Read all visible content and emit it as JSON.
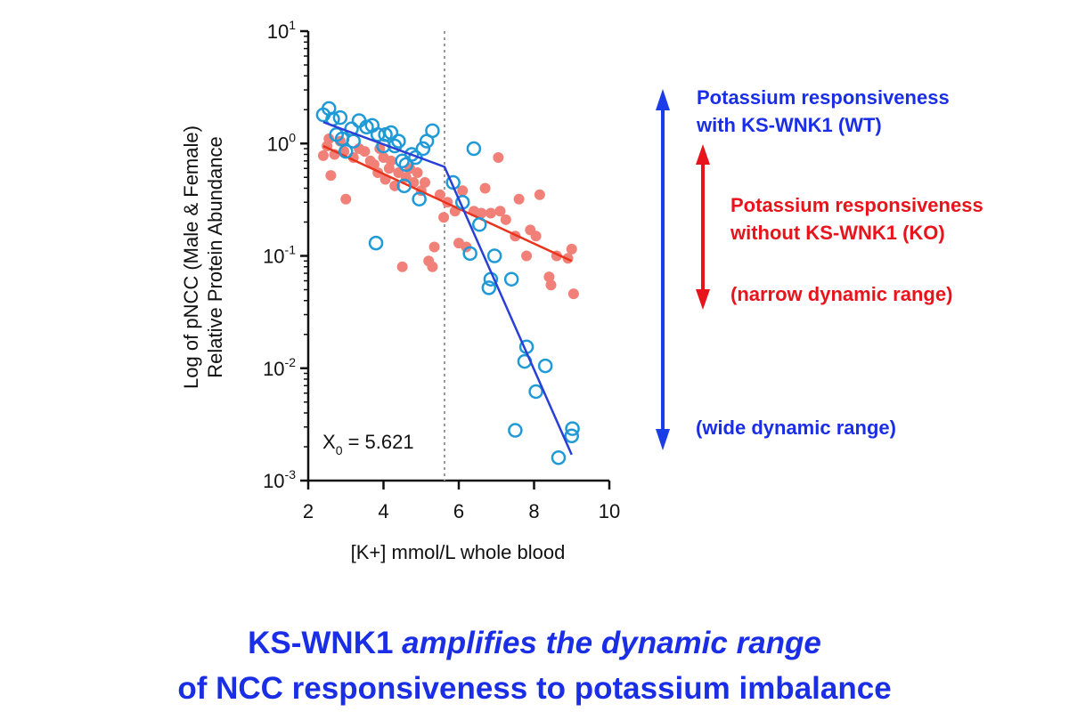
{
  "chart_data": {
    "type": "scatter",
    "xlabel": "[K+] mmol/L whole blood",
    "ylabel_line1": "Log of pNCC (Male & Female)",
    "ylabel_line2": "Relative Protein Abundance",
    "xlim": [
      2,
      10
    ],
    "xticks": [
      "2",
      "4",
      "6",
      "8",
      "10"
    ],
    "yscale": "log",
    "ylim": [
      0.001,
      10
    ],
    "ytick_labels": [
      {
        "value": 10,
        "base": "10",
        "exp": "1"
      },
      {
        "value": 1,
        "base": "10",
        "exp": "0"
      },
      {
        "value": 0.1,
        "base": "10",
        "exp": "-1"
      },
      {
        "value": 0.01,
        "base": "10",
        "exp": "-2"
      },
      {
        "value": 0.001,
        "base": "10",
        "exp": "-3"
      }
    ],
    "vline_x": 5.621,
    "annotation_base": "X",
    "annotation_sub": "0",
    "annotation_text": " = 5.621",
    "grid": false,
    "series": [
      {
        "marker": "open-circle",
        "color": "#1f9ad6",
        "points": [
          [
            2.4,
            1.8
          ],
          [
            2.55,
            2.05
          ],
          [
            2.65,
            1.65
          ],
          [
            2.75,
            1.2
          ],
          [
            2.85,
            1.7
          ],
          [
            2.9,
            1.1
          ],
          [
            3.0,
            0.85
          ],
          [
            3.15,
            1.35
          ],
          [
            3.2,
            1.05
          ],
          [
            3.35,
            1.6
          ],
          [
            3.55,
            1.4
          ],
          [
            3.7,
            1.45
          ],
          [
            3.85,
            1.2
          ],
          [
            4.0,
            0.95
          ],
          [
            4.05,
            1.2
          ],
          [
            4.2,
            1.25
          ],
          [
            4.3,
            0.95
          ],
          [
            4.4,
            1.05
          ],
          [
            4.5,
            0.7
          ],
          [
            4.55,
            0.42
          ],
          [
            4.6,
            0.65
          ],
          [
            4.75,
            0.8
          ],
          [
            4.85,
            0.75
          ],
          [
            4.95,
            0.32
          ],
          [
            5.05,
            0.9
          ],
          [
            5.15,
            1.05
          ],
          [
            5.3,
            1.3
          ],
          [
            3.8,
            0.13
          ],
          [
            5.85,
            0.45
          ],
          [
            6.1,
            0.3
          ],
          [
            6.3,
            0.105
          ],
          [
            6.4,
            0.9
          ],
          [
            6.55,
            0.19
          ],
          [
            6.8,
            0.052
          ],
          [
            6.85,
            0.062
          ],
          [
            6.95,
            0.1
          ],
          [
            7.4,
            0.062
          ],
          [
            7.5,
            0.0028
          ],
          [
            7.75,
            0.0115
          ],
          [
            7.8,
            0.0155
          ],
          [
            8.05,
            0.0062
          ],
          [
            8.3,
            0.0105
          ],
          [
            8.65,
            0.0016
          ],
          [
            9.0,
            0.0025
          ],
          [
            9.02,
            0.0029
          ]
        ],
        "fit": [
          [
            2.4,
            1.55
          ],
          [
            5.621,
            0.62
          ],
          [
            9.0,
            0.0017
          ]
        ]
      },
      {
        "marker": "filled-circle",
        "color": "#f08078",
        "points": [
          [
            2.4,
            0.78
          ],
          [
            2.5,
            0.95
          ],
          [
            2.55,
            1.1
          ],
          [
            2.6,
            0.52
          ],
          [
            2.7,
            0.8
          ],
          [
            2.85,
            1.05
          ],
          [
            2.95,
            0.85
          ],
          [
            3.0,
            0.32
          ],
          [
            3.2,
            0.75
          ],
          [
            3.35,
            0.9
          ],
          [
            3.5,
            0.85
          ],
          [
            3.65,
            0.7
          ],
          [
            3.75,
            0.65
          ],
          [
            3.85,
            0.55
          ],
          [
            3.9,
            0.9
          ],
          [
            4.0,
            0.75
          ],
          [
            4.05,
            0.48
          ],
          [
            4.15,
            0.6
          ],
          [
            4.2,
            0.7
          ],
          [
            4.3,
            0.42
          ],
          [
            4.4,
            0.55
          ],
          [
            4.5,
            0.08
          ],
          [
            4.6,
            0.5
          ],
          [
            4.7,
            0.6
          ],
          [
            4.8,
            0.45
          ],
          [
            4.9,
            0.55
          ],
          [
            5.0,
            0.38
          ],
          [
            5.1,
            0.45
          ],
          [
            5.2,
            0.09
          ],
          [
            5.3,
            0.08
          ],
          [
            5.35,
            0.12
          ],
          [
            5.5,
            0.35
          ],
          [
            5.6,
            0.22
          ],
          [
            5.7,
            0.3
          ],
          [
            5.9,
            0.25
          ],
          [
            6.0,
            0.13
          ],
          [
            6.1,
            0.38
          ],
          [
            6.2,
            0.12
          ],
          [
            6.4,
            0.25
          ],
          [
            6.6,
            0.24
          ],
          [
            6.7,
            0.4
          ],
          [
            6.85,
            0.24
          ],
          [
            7.05,
            0.75
          ],
          [
            7.1,
            0.25
          ],
          [
            7.25,
            0.21
          ],
          [
            7.5,
            0.15
          ],
          [
            7.6,
            0.32
          ],
          [
            7.8,
            0.1
          ],
          [
            7.9,
            0.17
          ],
          [
            8.05,
            0.15
          ],
          [
            8.15,
            0.35
          ],
          [
            8.4,
            0.065
          ],
          [
            8.45,
            0.055
          ],
          [
            8.6,
            0.1
          ],
          [
            8.9,
            0.095
          ],
          [
            9.0,
            0.115
          ],
          [
            9.05,
            0.046
          ]
        ],
        "fit": [
          [
            2.4,
            0.95
          ],
          [
            9.0,
            0.09
          ]
        ]
      }
    ]
  },
  "labels": {
    "wt_line1": "Potassium responsiveness",
    "wt_line2": "with KS-WNK1 (WT)",
    "ko_line1": "Potassium responsiveness",
    "ko_line2": "without KS-WNK1 (KO)",
    "ko_range": "(narrow dynamic range)",
    "wt_range": "(wide dynamic range)"
  },
  "caption": {
    "line1_a": "KS-WNK1 ",
    "line1_b": "amplifies the dynamic range",
    "line2": "of NCC responsiveness to potassium imbalance"
  },
  "colors": {
    "blue_text": "#1a2ee6",
    "red_text": "#e8141c",
    "wt_line": "#2a3fd6",
    "ko_line": "#e8341c",
    "wt_marker": "#1f9ad6",
    "ko_marker": "#f08078",
    "blue_arrow": "#1a3de8",
    "red_arrow": "#e8141c"
  }
}
